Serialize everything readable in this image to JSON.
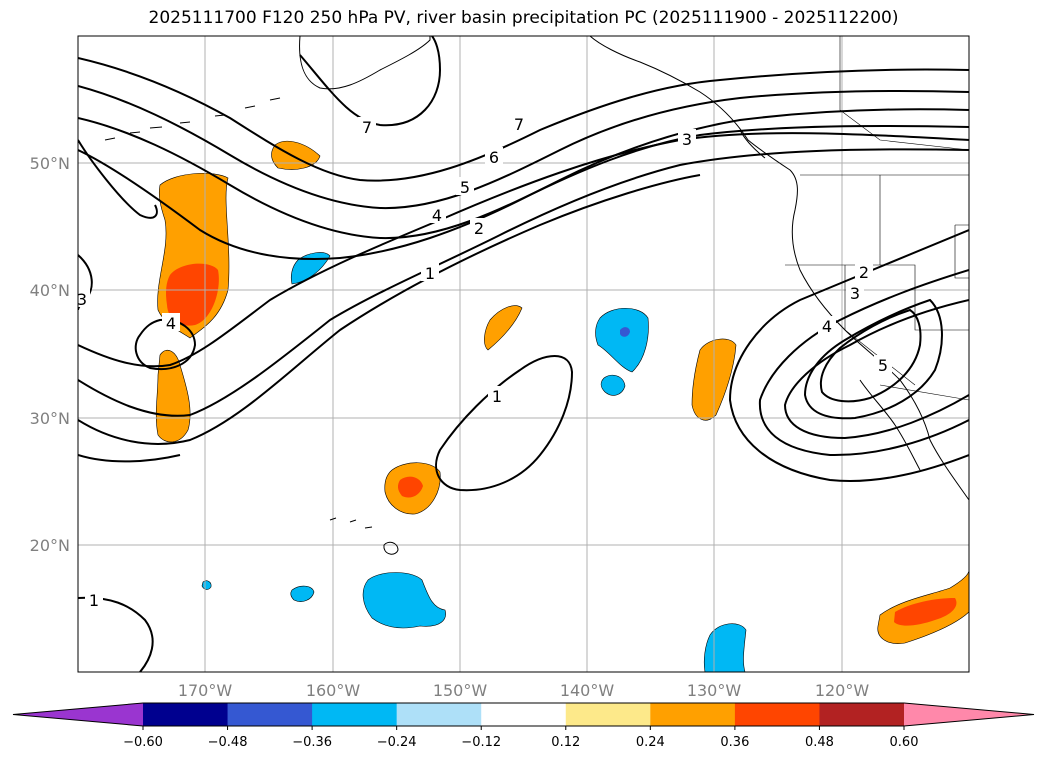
{
  "title": "2025111700 F120 250 hPa PV, river basin precipitation PC (2025111900 - 2025112200)",
  "map": {
    "lat_labels": [
      "50°N",
      "40°N",
      "30°N",
      "20°N"
    ],
    "lon_labels": [
      "170°W",
      "160°W",
      "150°W",
      "140°W",
      "130°W",
      "120°W"
    ],
    "contour_labels": [
      "7",
      "7",
      "6",
      "5",
      "4",
      "2",
      "1",
      "3",
      "1",
      "2",
      "3",
      "4",
      "5",
      "4",
      "1",
      "3"
    ]
  },
  "colorbar": {
    "tick_labels": [
      "−0.60",
      "−0.48",
      "−0.36",
      "−0.24",
      "−0.12",
      "0.12",
      "0.24",
      "0.36",
      "0.48",
      "0.60"
    ],
    "colors": [
      "#9a35d0",
      "#00008f",
      "#3558d2",
      "#00b8f4",
      "#aee0f8",
      "#ffffff",
      "#fde98a",
      "#ffa000",
      "#ff4500",
      "#b22222",
      "#ff88aa"
    ]
  }
}
